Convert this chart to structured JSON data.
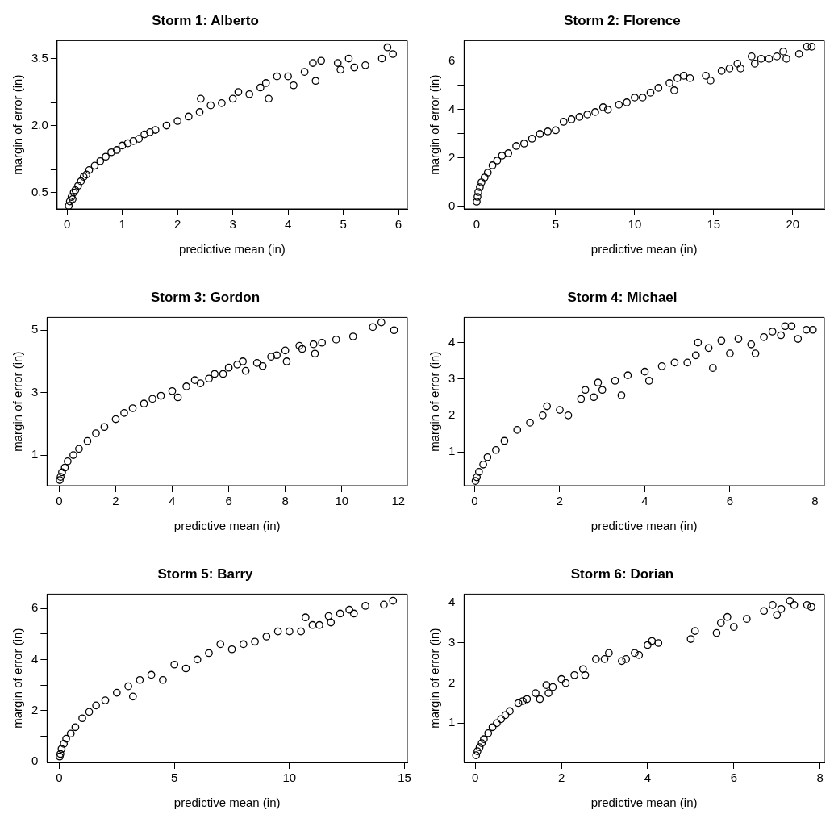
{
  "chart_data": [
    {
      "type": "scatter",
      "title": "Storm 1: Alberto",
      "xlabel": "predictive mean (in)",
      "ylabel": "margin of error (in)",
      "color": "#000000",
      "marker": "circle",
      "grid": false,
      "xlim": [
        -0.18,
        6.16
      ],
      "ylim": [
        0.13,
        3.9
      ],
      "xticks": [
        0,
        1,
        2,
        3,
        4,
        5,
        6
      ],
      "yticks": [
        0.5,
        {
          "value": 1,
          "label": null
        },
        {
          "value": 1.5,
          "label": null
        },
        {
          "value": 2,
          "label": "2.0"
        },
        {
          "value": 2.5,
          "label": null
        },
        {
          "value": 3,
          "label": null
        },
        3.5
      ],
      "x": [
        0.03,
        0.05,
        0.08,
        0.1,
        0.12,
        0.15,
        0.2,
        0.25,
        0.3,
        0.35,
        0.4,
        0.5,
        0.6,
        0.7,
        0.8,
        0.9,
        1.0,
        1.1,
        1.2,
        1.3,
        1.4,
        1.5,
        1.6,
        1.8,
        2.0,
        2.2,
        2.4,
        2.42,
        2.6,
        2.8,
        3.0,
        3.1,
        3.3,
        3.5,
        3.6,
        3.65,
        3.8,
        4.0,
        4.1,
        4.3,
        4.45,
        4.5,
        4.6,
        4.9,
        4.95,
        5.1,
        5.2,
        5.4,
        5.7,
        5.8,
        5.9
      ],
      "values": [
        0.2,
        0.3,
        0.4,
        0.35,
        0.5,
        0.55,
        0.65,
        0.75,
        0.85,
        0.9,
        1.0,
        1.1,
        1.2,
        1.3,
        1.4,
        1.45,
        1.55,
        1.6,
        1.65,
        1.7,
        1.8,
        1.85,
        1.9,
        2.0,
        2.1,
        2.2,
        2.3,
        2.6,
        2.45,
        2.5,
        2.6,
        2.75,
        2.7,
        2.85,
        2.95,
        2.6,
        3.1,
        3.1,
        2.9,
        3.2,
        3.4,
        3.0,
        3.45,
        3.4,
        3.25,
        3.5,
        3.3,
        3.35,
        3.5,
        3.75,
        3.6
      ]
    },
    {
      "type": "scatter",
      "title": "Storm 2: Florence",
      "xlabel": "predictive mean (in)",
      "ylabel": "margin of error (in)",
      "color": "#000000",
      "marker": "circle",
      "grid": false,
      "xlim": [
        -0.8,
        22.0
      ],
      "ylim": [
        -0.1,
        6.85
      ],
      "xticks": [
        0,
        5,
        10,
        15,
        20
      ],
      "yticks": [
        0,
        {
          "value": 1,
          "label": null
        },
        2,
        {
          "value": 3,
          "label": null
        },
        4,
        {
          "value": 5,
          "label": null
        },
        6
      ],
      "x": [
        0,
        0.05,
        0.1,
        0.2,
        0.3,
        0.5,
        0.7,
        1,
        1.3,
        1.6,
        2,
        2.5,
        3,
        3.5,
        4,
        4.5,
        5,
        5.5,
        6,
        6.5,
        7,
        7.5,
        8,
        8.3,
        9,
        9.5,
        10,
        10.5,
        11,
        11.5,
        12.2,
        12.5,
        12.7,
        13.1,
        13.5,
        14.5,
        14.8,
        15.5,
        16,
        16.5,
        16.7,
        17.4,
        17.6,
        18,
        18.5,
        19,
        19.4,
        19.6,
        20.4,
        20.9,
        21.2
      ],
      "values": [
        0.2,
        0.4,
        0.6,
        0.8,
        1.0,
        1.2,
        1.4,
        1.7,
        1.9,
        2.1,
        2.2,
        2.5,
        2.6,
        2.8,
        3.0,
        3.1,
        3.15,
        3.5,
        3.6,
        3.7,
        3.8,
        3.9,
        4.1,
        4.0,
        4.2,
        4.3,
        4.5,
        4.5,
        4.7,
        4.9,
        5.1,
        4.8,
        5.3,
        5.4,
        5.3,
        5.4,
        5.2,
        5.6,
        5.7,
        5.9,
        5.7,
        6.2,
        5.9,
        6.1,
        6.1,
        6.2,
        6.4,
        6.1,
        6.3,
        6.6,
        6.6
      ]
    },
    {
      "type": "scatter",
      "title": "Storm 3: Gordon",
      "xlabel": "predictive mean (in)",
      "ylabel": "margin of error (in)",
      "color": "#000000",
      "marker": "circle",
      "grid": false,
      "xlim": [
        -0.43,
        12.32
      ],
      "ylim": [
        0.02,
        5.41
      ],
      "xticks": [
        0,
        2,
        4,
        6,
        8,
        10,
        12
      ],
      "yticks": [
        1,
        {
          "value": 2,
          "label": null
        },
        3,
        {
          "value": 4,
          "label": null
        },
        5
      ],
      "x": [
        0.02,
        0.05,
        0.1,
        0.2,
        0.3,
        0.5,
        0.7,
        1,
        1.3,
        1.6,
        2,
        2.3,
        2.6,
        3,
        3.3,
        3.6,
        4,
        4.2,
        4.5,
        4.8,
        5,
        5.3,
        5.5,
        5.8,
        6,
        6.3,
        6.5,
        6.6,
        7,
        7.2,
        7.5,
        7.7,
        8,
        8.05,
        8.5,
        8.6,
        9,
        9.05,
        9.3,
        9.8,
        10.4,
        11.1,
        11.4,
        11.85
      ],
      "values": [
        0.2,
        0.3,
        0.45,
        0.6,
        0.8,
        1.0,
        1.2,
        1.45,
        1.7,
        1.9,
        2.15,
        2.35,
        2.5,
        2.65,
        2.8,
        2.9,
        3.05,
        2.85,
        3.2,
        3.4,
        3.3,
        3.45,
        3.6,
        3.6,
        3.8,
        3.9,
        4.0,
        3.7,
        3.95,
        3.85,
        4.15,
        4.2,
        4.35,
        4.0,
        4.5,
        4.4,
        4.55,
        4.25,
        4.6,
        4.7,
        4.8,
        5.1,
        5.25,
        5.0
      ]
    },
    {
      "type": "scatter",
      "title": "Storm 4: Michael",
      "xlabel": "predictive mean (in)",
      "ylabel": "margin of error (in)",
      "color": "#000000",
      "marker": "circle",
      "grid": false,
      "xlim": [
        -0.25,
        8.22
      ],
      "ylim": [
        0.07,
        4.69
      ],
      "xticks": [
        0,
        2,
        4,
        6,
        8
      ],
      "yticks": [
        1,
        2,
        3,
        4
      ],
      "x": [
        0.02,
        0.05,
        0.1,
        0.2,
        0.3,
        0.5,
        0.7,
        1,
        1.3,
        1.6,
        1.7,
        2,
        2.2,
        2.5,
        2.6,
        2.8,
        2.9,
        3,
        3.3,
        3.45,
        3.6,
        4,
        4.1,
        4.4,
        4.7,
        5,
        5.2,
        5.25,
        5.5,
        5.6,
        5.8,
        6,
        6.2,
        6.5,
        6.6,
        6.8,
        7,
        7.2,
        7.3,
        7.45,
        7.6,
        7.8,
        7.95
      ],
      "values": [
        0.2,
        0.3,
        0.45,
        0.65,
        0.85,
        1.05,
        1.3,
        1.6,
        1.8,
        2.0,
        2.25,
        2.15,
        2.0,
        2.45,
        2.7,
        2.5,
        2.9,
        2.7,
        2.95,
        2.55,
        3.1,
        3.2,
        2.95,
        3.35,
        3.45,
        3.45,
        3.65,
        4.0,
        3.85,
        3.3,
        4.05,
        3.7,
        4.1,
        3.95,
        3.7,
        4.15,
        4.3,
        4.2,
        4.45,
        4.45,
        4.1,
        4.35,
        4.35
      ]
    },
    {
      "type": "scatter",
      "title": "Storm 5: Barry",
      "xlabel": "predictive mean (in)",
      "ylabel": "margin of error (in)",
      "color": "#000000",
      "marker": "circle",
      "grid": false,
      "xlim": [
        -0.53,
        15.12
      ],
      "ylim": [
        -0.03,
        6.56
      ],
      "xticks": [
        0,
        5,
        10,
        15
      ],
      "yticks": [
        0,
        {
          "value": 1,
          "label": null
        },
        2,
        {
          "value": 3,
          "label": null
        },
        4,
        {
          "value": 5,
          "label": null
        },
        6
      ],
      "x": [
        0.02,
        0.05,
        0.1,
        0.2,
        0.3,
        0.5,
        0.7,
        1,
        1.3,
        1.6,
        2,
        2.5,
        3,
        3.2,
        3.5,
        4,
        4.5,
        5,
        5.5,
        6,
        6.5,
        7,
        7.5,
        8,
        8.5,
        9,
        9.5,
        10,
        10.5,
        10.7,
        11,
        11.3,
        11.7,
        11.8,
        12.2,
        12.6,
        12.8,
        13.3,
        14.1,
        14.5
      ],
      "values": [
        0.2,
        0.3,
        0.5,
        0.7,
        0.9,
        1.1,
        1.35,
        1.7,
        1.95,
        2.2,
        2.4,
        2.7,
        2.95,
        2.55,
        3.2,
        3.4,
        3.2,
        3.8,
        3.65,
        4.0,
        4.25,
        4.6,
        4.4,
        4.6,
        4.7,
        4.9,
        5.1,
        5.1,
        5.1,
        5.65,
        5.35,
        5.35,
        5.7,
        5.45,
        5.8,
        5.95,
        5.8,
        6.1,
        6.15,
        6.3
      ]
    },
    {
      "type": "scatter",
      "title": "Storm 6: Dorian",
      "xlabel": "predictive mean (in)",
      "ylabel": "margin of error (in)",
      "color": "#000000",
      "marker": "circle",
      "grid": false,
      "xlim": [
        -0.26,
        8.1
      ],
      "ylim": [
        0.02,
        4.22
      ],
      "xticks": [
        0,
        2,
        4,
        6,
        8
      ],
      "yticks": [
        1,
        2,
        3,
        4
      ],
      "x": [
        0.02,
        0.05,
        0.1,
        0.15,
        0.2,
        0.3,
        0.4,
        0.5,
        0.6,
        0.7,
        0.8,
        1,
        1.1,
        1.2,
        1.4,
        1.5,
        1.65,
        1.7,
        1.8,
        2,
        2.1,
        2.3,
        2.5,
        2.55,
        2.8,
        3,
        3.1,
        3.4,
        3.5,
        3.7,
        3.8,
        4,
        4.1,
        4.25,
        5,
        5.1,
        5.6,
        5.7,
        5.85,
        6,
        6.3,
        6.7,
        6.9,
        7,
        7.1,
        7.3,
        7.4,
        7.7,
        7.8
      ],
      "values": [
        0.2,
        0.3,
        0.4,
        0.5,
        0.6,
        0.75,
        0.9,
        1.0,
        1.1,
        1.2,
        1.3,
        1.5,
        1.55,
        1.6,
        1.75,
        1.6,
        1.95,
        1.75,
        1.9,
        2.1,
        2.0,
        2.2,
        2.35,
        2.2,
        2.6,
        2.6,
        2.75,
        2.55,
        2.6,
        2.75,
        2.7,
        2.95,
        3.05,
        3.0,
        3.1,
        3.3,
        3.25,
        3.5,
        3.65,
        3.4,
        3.6,
        3.8,
        3.95,
        3.7,
        3.85,
        4.05,
        3.95,
        3.95,
        3.9
      ]
    }
  ]
}
